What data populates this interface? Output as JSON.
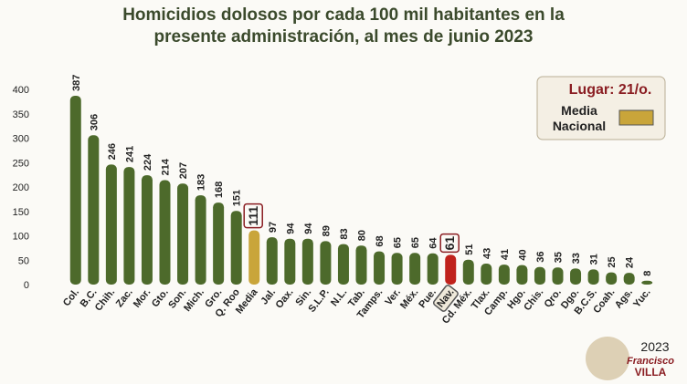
{
  "chart_data": {
    "type": "bar",
    "title": [
      "Homicidios dolosos por cada 100 mil habitantes en la",
      "presente administración, al mes de junio 2023"
    ],
    "categories": [
      "Col.",
      "B.C.",
      "Chih.",
      "Zac.",
      "Mor.",
      "Gto.",
      "Son.",
      "Mich.",
      "Gro.",
      "Q. Roo",
      "Media",
      "Jal.",
      "Oax.",
      "Sin.",
      "S.L.P.",
      "N.L.",
      "Tab.",
      "Tamps.",
      "Ver.",
      "Méx.",
      "Pue.",
      "Nav.",
      "Cd. Méx.",
      "Tlax.",
      "Camp.",
      "Hgo.",
      "Chis.",
      "Qro.",
      "Dgo.",
      "B.C.S.",
      "Coah.",
      "Ags.",
      "Yuc."
    ],
    "values": [
      387,
      306,
      246,
      241,
      224,
      214,
      207,
      183,
      168,
      151,
      111,
      97,
      94,
      94,
      89,
      83,
      80,
      68,
      65,
      65,
      64,
      61,
      51,
      43,
      41,
      40,
      36,
      35,
      33,
      31,
      25,
      24,
      8
    ],
    "color": "#4d6a2b",
    "colors": [
      "#4d6a2b",
      "#4d6a2b",
      "#4d6a2b",
      "#4d6a2b",
      "#4d6a2b",
      "#4d6a2b",
      "#4d6a2b",
      "#4d6a2b",
      "#4d6a2b",
      "#4d6a2b",
      "#c9a53a",
      "#4d6a2b",
      "#4d6a2b",
      "#4d6a2b",
      "#4d6a2b",
      "#4d6a2b",
      "#4d6a2b",
      "#4d6a2b",
      "#4d6a2b",
      "#4d6a2b",
      "#4d6a2b",
      "#c0221c",
      "#4d6a2b",
      "#4d6a2b",
      "#4d6a2b",
      "#4d6a2b",
      "#4d6a2b",
      "#4d6a2b",
      "#4d6a2b",
      "#4d6a2b",
      "#4d6a2b",
      "#4d6a2b",
      "#4d6a2b"
    ],
    "ylim": [
      0,
      400
    ],
    "yticks": [
      0,
      50,
      100,
      150,
      200,
      250,
      300,
      350,
      400
    ],
    "legend": {
      "rank": "Lugar: 21/o.",
      "label": [
        "Media",
        "Nacional"
      ],
      "color": "#c9a53a"
    },
    "logo": {
      "year": "2023",
      "name": "Francisco",
      "surname": "VILLA"
    }
  }
}
